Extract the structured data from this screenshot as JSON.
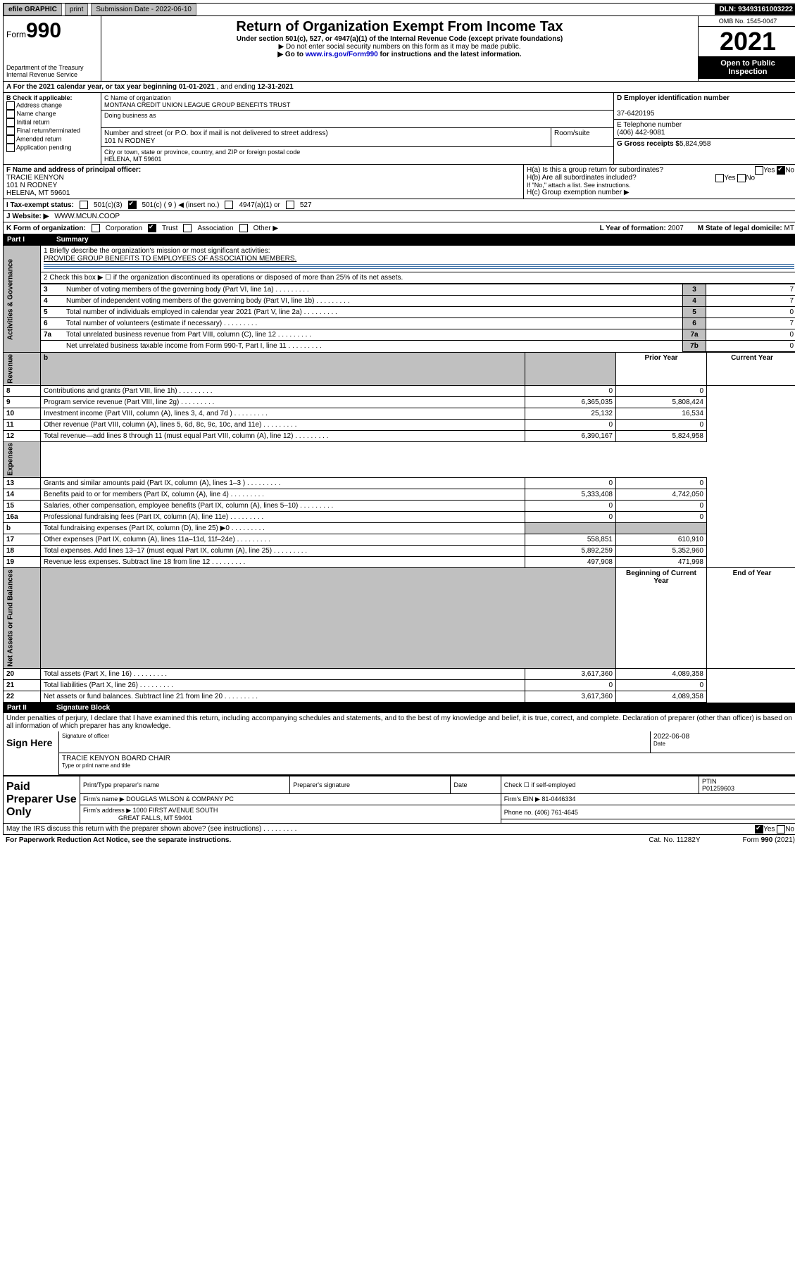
{
  "topbar": {
    "efile": "efile GRAPHIC",
    "print": "print",
    "submission": "Submission Date - 2022-06-10",
    "dln": "DLN: 93493161003222"
  },
  "header": {
    "form_prefix": "Form",
    "form_no": "990",
    "dept": "Department of the Treasury",
    "irs": "Internal Revenue Service",
    "title": "Return of Organization Exempt From Income Tax",
    "sub1": "Under section 501(c), 527, or 4947(a)(1) of the Internal Revenue Code (except private foundations)",
    "sub2": "▶ Do not enter social security numbers on this form as it may be made public.",
    "sub3_pre": "▶ Go to ",
    "sub3_link": "www.irs.gov/Form990",
    "sub3_post": " for instructions and the latest information.",
    "omb": "OMB No. 1545-0047",
    "year": "2021",
    "open": "Open to Public Inspection"
  },
  "rowA": {
    "text_pre": "A For the 2021 calendar year, or tax year beginning ",
    "begin": "01-01-2021",
    "mid": " , and ending ",
    "end": "12-31-2021"
  },
  "colB": {
    "label": "B Check if applicable:",
    "items": [
      "Address change",
      "Name change",
      "Initial return",
      "Final return/terminated",
      "Amended return",
      "Application pending"
    ]
  },
  "colC": {
    "name_lbl": "C Name of organization",
    "name": "MONTANA CREDIT UNION LEAGUE GROUP BENEFITS TRUST",
    "dba_lbl": "Doing business as",
    "dba": "",
    "street_lbl": "Number and street (or P.O. box if mail is not delivered to street address)",
    "street": "101 N RODNEY",
    "room_lbl": "Room/suite",
    "city_lbl": "City or town, state or province, country, and ZIP or foreign postal code",
    "city": "HELENA, MT  59601"
  },
  "colDE": {
    "ein_lbl": "D Employer identification number",
    "ein": "37-6420195",
    "tel_lbl": "E Telephone number",
    "tel": "(406) 442-9081",
    "gross_lbl": "G Gross receipts $",
    "gross": "5,824,958"
  },
  "blockF": {
    "f_lbl": "F  Name and address of principal officer:",
    "f_name": "TRACIE KENYON",
    "f_addr1": "101 N RODNEY",
    "f_addr2": "HELENA, MT  59601",
    "ha": "H(a)  Is this a group return for subordinates?",
    "hb": "H(b)  Are all subordinates included?",
    "hb_note": "If \"No,\" attach a list. See instructions.",
    "hc": "H(c)  Group exemption number ▶"
  },
  "rowI": {
    "lbl": "I  Tax-exempt status:",
    "o1": "501(c)(3)",
    "o2": "501(c) ( 9 ) ◀ (insert no.)",
    "o3": "4947(a)(1) or",
    "o4": "527"
  },
  "rowJ": {
    "lbl": "J  Website: ▶",
    "val": "WWW.MCUN.COOP"
  },
  "rowK": {
    "lbl": "K Form of organization:",
    "opts": [
      "Corporation",
      "Trust",
      "Association",
      "Other ▶"
    ],
    "l_lbl": "L Year of formation:",
    "l_val": "2007",
    "m_lbl": "M State of legal domicile:",
    "m_val": "MT"
  },
  "part1": {
    "label": "Part I",
    "title": "Summary"
  },
  "governance": {
    "vlabel": "Activities & Governance",
    "q1": "1  Briefly describe the organization's mission or most significant activities:",
    "q1v": "PROVIDE GROUP BENEFITS TO EMPLOYEES OF ASSOCIATION MEMBERS.",
    "q2": "2  Check this box ▶ ☐  if the organization discontinued its operations or disposed of more than 25% of its net assets.",
    "rows": [
      {
        "n": "3",
        "t": "Number of voting members of the governing body (Part VI, line 1a)",
        "b": "3",
        "v": "7"
      },
      {
        "n": "4",
        "t": "Number of independent voting members of the governing body (Part VI, line 1b)",
        "b": "4",
        "v": "7"
      },
      {
        "n": "5",
        "t": "Total number of individuals employed in calendar year 2021 (Part V, line 2a)",
        "b": "5",
        "v": "0"
      },
      {
        "n": "6",
        "t": "Total number of volunteers (estimate if necessary)",
        "b": "6",
        "v": "7"
      },
      {
        "n": "7a",
        "t": "Total unrelated business revenue from Part VIII, column (C), line 12",
        "b": "7a",
        "v": "0"
      },
      {
        "n": "",
        "t": "Net unrelated business taxable income from Form 990-T, Part I, line 11",
        "b": "7b",
        "v": "0"
      }
    ]
  },
  "revexp": {
    "h_prior": "Prior Year",
    "h_curr": "Current Year",
    "rev_label": "Revenue",
    "exp_label": "Expenses",
    "net_label": "Net Assets or Fund Balances",
    "rev": [
      {
        "n": "8",
        "t": "Contributions and grants (Part VIII, line 1h)",
        "p": "0",
        "c": "0"
      },
      {
        "n": "9",
        "t": "Program service revenue (Part VIII, line 2g)",
        "p": "6,365,035",
        "c": "5,808,424"
      },
      {
        "n": "10",
        "t": "Investment income (Part VIII, column (A), lines 3, 4, and 7d )",
        "p": "25,132",
        "c": "16,534"
      },
      {
        "n": "11",
        "t": "Other revenue (Part VIII, column (A), lines 5, 6d, 8c, 9c, 10c, and 11e)",
        "p": "0",
        "c": "0"
      },
      {
        "n": "12",
        "t": "Total revenue—add lines 8 through 11 (must equal Part VIII, column (A), line 12)",
        "p": "6,390,167",
        "c": "5,824,958"
      }
    ],
    "exp": [
      {
        "n": "13",
        "t": "Grants and similar amounts paid (Part IX, column (A), lines 1–3 )",
        "p": "0",
        "c": "0"
      },
      {
        "n": "14",
        "t": "Benefits paid to or for members (Part IX, column (A), line 4)",
        "p": "5,333,408",
        "c": "4,742,050"
      },
      {
        "n": "15",
        "t": "Salaries, other compensation, employee benefits (Part IX, column (A), lines 5–10)",
        "p": "0",
        "c": "0"
      },
      {
        "n": "16a",
        "t": "Professional fundraising fees (Part IX, column (A), line 11e)",
        "p": "0",
        "c": "0"
      },
      {
        "n": "b",
        "t": "Total fundraising expenses (Part IX, column (D), line 25) ▶0",
        "p": "",
        "c": "",
        "grey": true
      },
      {
        "n": "17",
        "t": "Other expenses (Part IX, column (A), lines 11a–11d, 11f–24e)",
        "p": "558,851",
        "c": "610,910"
      },
      {
        "n": "18",
        "t": "Total expenses. Add lines 13–17 (must equal Part IX, column (A), line 25)",
        "p": "5,892,259",
        "c": "5,352,960"
      },
      {
        "n": "19",
        "t": "Revenue less expenses. Subtract line 18 from line 12",
        "p": "497,908",
        "c": "471,998"
      }
    ],
    "net_h_prior": "Beginning of Current Year",
    "net_h_curr": "End of Year",
    "net": [
      {
        "n": "20",
        "t": "Total assets (Part X, line 16)",
        "p": "3,617,360",
        "c": "4,089,358"
      },
      {
        "n": "21",
        "t": "Total liabilities (Part X, line 26)",
        "p": "0",
        "c": "0"
      },
      {
        "n": "22",
        "t": "Net assets or fund balances. Subtract line 21 from line 20",
        "p": "3,617,360",
        "c": "4,089,358"
      }
    ]
  },
  "part2": {
    "label": "Part II",
    "title": "Signature Block"
  },
  "sig": {
    "decl": "Under penalties of perjury, I declare that I have examined this return, including accompanying schedules and statements, and to the best of my knowledge and belief, it is true, correct, and complete. Declaration of preparer (other than officer) is based on all information of which preparer has any knowledge.",
    "sign_here": "Sign Here",
    "sig_officer": "Signature of officer",
    "date_lbl": "Date",
    "date": "2022-06-08",
    "name": "TRACIE KENYON  BOARD CHAIR",
    "name_lbl": "Type or print name and title"
  },
  "paid": {
    "label": "Paid Preparer Use Only",
    "h1": "Print/Type preparer's name",
    "h2": "Preparer's signature",
    "h3": "Date",
    "check_lbl": "Check ☐ if self-employed",
    "ptin_lbl": "PTIN",
    "ptin": "P01259603",
    "firm_name_lbl": "Firm's name   ▶",
    "firm_name": "DOUGLAS WILSON & COMPANY PC",
    "firm_ein_lbl": "Firm's EIN ▶",
    "firm_ein": "81-0446334",
    "firm_addr_lbl": "Firm's address ▶",
    "firm_addr1": "1000 FIRST AVENUE SOUTH",
    "firm_addr2": "GREAT FALLS, MT  59401",
    "phone_lbl": "Phone no.",
    "phone": "(406) 761-4645"
  },
  "may": "May the IRS discuss this return with the preparer shown above? (see instructions)",
  "footer": {
    "l": "For Paperwork Reduction Act Notice, see the separate instructions.",
    "m": "Cat. No. 11282Y",
    "r": "Form 990 (2021)"
  }
}
